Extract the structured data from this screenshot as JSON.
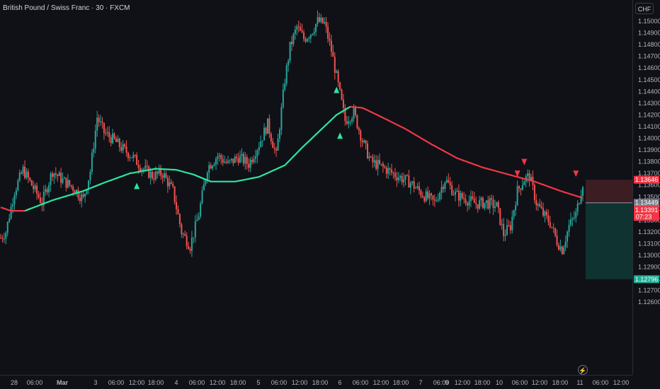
{
  "header": {
    "title": "British Pound / Swiss Franc · 30 · FXCM",
    "currency_button": "CHF"
  },
  "colors": {
    "background": "#0f1117",
    "up": "#26a69a",
    "down": "#ef5350",
    "ma_up": "#2ee59d",
    "ma_down": "#f23645",
    "grid": "#1c1f29",
    "stop_zone": "#3b1d22",
    "target_zone": "#0f3331"
  },
  "chart_data": {
    "type": "candlestick",
    "title": "British Pound / Swiss Franc · 30 · FXCM",
    "y_unit": "CHF",
    "ylim": [
      1.1255,
      1.1512
    ],
    "y_ticks": [
      "1.15000",
      "1.14900",
      "1.14800",
      "1.14700",
      "1.14600",
      "1.14500",
      "1.14400",
      "1.14300",
      "1.14200",
      "1.14100",
      "1.14000",
      "1.13900",
      "1.13800",
      "1.13700",
      "1.13600",
      "1.13500",
      "1.13400",
      "1.13300",
      "1.13200",
      "1.13100",
      "1.13000",
      "1.12900",
      "1.12800",
      "1.12700",
      "1.12600"
    ],
    "x_ticks": [
      "28",
      "06:00",
      "Mar",
      "3",
      "06:00",
      "12:00",
      "18:00",
      "4",
      "06:00",
      "12:00",
      "18:00",
      "5",
      "06:00",
      "12:00",
      "18:00",
      "6",
      "06:00",
      "12:00",
      "18:00",
      "7",
      "06:00",
      "12:00",
      "18:00",
      "9",
      "10",
      "06:00",
      "12:00",
      "18:00",
      "11",
      "06:00",
      "12:00"
    ],
    "price_path": [
      {
        "i": 0,
        "p": 1.1315
      },
      {
        "i": 3,
        "p": 1.132
      },
      {
        "i": 8,
        "p": 1.1355
      },
      {
        "i": 13,
        "p": 1.1373
      },
      {
        "i": 18,
        "p": 1.136
      },
      {
        "i": 24,
        "p": 1.1345
      },
      {
        "i": 30,
        "p": 1.1372
      },
      {
        "i": 36,
        "p": 1.1364
      },
      {
        "i": 42,
        "p": 1.1358
      },
      {
        "i": 48,
        "p": 1.1348
      },
      {
        "i": 52,
        "p": 1.1372
      },
      {
        "i": 56,
        "p": 1.1418
      },
      {
        "i": 60,
        "p": 1.1405
      },
      {
        "i": 66,
        "p": 1.1398
      },
      {
        "i": 70,
        "p": 1.1392
      },
      {
        "i": 76,
        "p": 1.1385
      },
      {
        "i": 82,
        "p": 1.1375
      },
      {
        "i": 88,
        "p": 1.1368
      },
      {
        "i": 94,
        "p": 1.137
      },
      {
        "i": 100,
        "p": 1.1355
      },
      {
        "i": 105,
        "p": 1.132
      },
      {
        "i": 110,
        "p": 1.1308
      },
      {
        "i": 115,
        "p": 1.1335
      },
      {
        "i": 120,
        "p": 1.1375
      },
      {
        "i": 126,
        "p": 1.1385
      },
      {
        "i": 132,
        "p": 1.1378
      },
      {
        "i": 138,
        "p": 1.1384
      },
      {
        "i": 144,
        "p": 1.1378
      },
      {
        "i": 150,
        "p": 1.1395
      },
      {
        "i": 155,
        "p": 1.1412
      },
      {
        "i": 160,
        "p": 1.1385
      },
      {
        "i": 165,
        "p": 1.145
      },
      {
        "i": 168,
        "p": 1.1478
      },
      {
        "i": 172,
        "p": 1.1495
      },
      {
        "i": 176,
        "p": 1.1485
      },
      {
        "i": 180,
        "p": 1.149
      },
      {
        "i": 184,
        "p": 1.15
      },
      {
        "i": 188,
        "p": 1.1498
      },
      {
        "i": 192,
        "p": 1.1475
      },
      {
        "i": 196,
        "p": 1.1445
      },
      {
        "i": 200,
        "p": 1.1415
      },
      {
        "i": 205,
        "p": 1.1422
      },
      {
        "i": 210,
        "p": 1.1398
      },
      {
        "i": 215,
        "p": 1.138
      },
      {
        "i": 222,
        "p": 1.1375
      },
      {
        "i": 230,
        "p": 1.1368
      },
      {
        "i": 238,
        "p": 1.1362
      },
      {
        "i": 245,
        "p": 1.1352
      },
      {
        "i": 252,
        "p": 1.1345
      },
      {
        "i": 258,
        "p": 1.1365
      },
      {
        "i": 264,
        "p": 1.1352
      },
      {
        "i": 270,
        "p": 1.1348
      },
      {
        "i": 276,
        "p": 1.1344
      },
      {
        "i": 282,
        "p": 1.1345
      },
      {
        "i": 288,
        "p": 1.1342
      },
      {
        "i": 292,
        "p": 1.1318
      },
      {
        "i": 296,
        "p": 1.1325
      },
      {
        "i": 300,
        "p": 1.1355
      },
      {
        "i": 304,
        "p": 1.1365
      },
      {
        "i": 307,
        "p": 1.1368
      },
      {
        "i": 311,
        "p": 1.1345
      },
      {
        "i": 315,
        "p": 1.1335
      },
      {
        "i": 319,
        "p": 1.1328
      },
      {
        "i": 323,
        "p": 1.1312
      },
      {
        "i": 326,
        "p": 1.1305
      },
      {
        "i": 330,
        "p": 1.1325
      },
      {
        "i": 334,
        "p": 1.1335
      },
      {
        "i": 338,
        "p": 1.1362
      }
    ],
    "moving_average": [
      {
        "i": 0,
        "v": 1.1341
      },
      {
        "i": 6,
        "v": 1.1338
      },
      {
        "i": 14,
        "v": 1.1338
      },
      {
        "i": 30,
        "v": 1.1347
      },
      {
        "i": 48,
        "v": 1.1355
      },
      {
        "i": 60,
        "v": 1.1362
      },
      {
        "i": 75,
        "v": 1.137
      },
      {
        "i": 90,
        "v": 1.1374
      },
      {
        "i": 102,
        "v": 1.1373
      },
      {
        "i": 112,
        "v": 1.1369
      },
      {
        "i": 122,
        "v": 1.1363
      },
      {
        "i": 136,
        "v": 1.1363
      },
      {
        "i": 150,
        "v": 1.1367
      },
      {
        "i": 165,
        "v": 1.1377
      },
      {
        "i": 175,
        "v": 1.1392
      },
      {
        "i": 185,
        "v": 1.1406
      },
      {
        "i": 195,
        "v": 1.142
      },
      {
        "i": 203,
        "v": 1.1427
      },
      {
        "i": 210,
        "v": 1.1426
      },
      {
        "i": 220,
        "v": 1.1419
      },
      {
        "i": 235,
        "v": 1.1408
      },
      {
        "i": 250,
        "v": 1.1395
      },
      {
        "i": 265,
        "v": 1.1383
      },
      {
        "i": 280,
        "v": 1.1375
      },
      {
        "i": 295,
        "v": 1.1369
      },
      {
        "i": 310,
        "v": 1.1363
      },
      {
        "i": 325,
        "v": 1.1355
      },
      {
        "i": 338,
        "v": 1.1349
      }
    ],
    "ma_turn_index": 203,
    "signals": [
      {
        "type": "buy",
        "i": 79,
        "p": 1.1359
      },
      {
        "type": "buy",
        "i": 195,
        "p": 1.1441
      },
      {
        "type": "buy",
        "i": 197,
        "p": 1.1402
      },
      {
        "type": "sell",
        "i": 304,
        "p": 1.138
      },
      {
        "type": "sell",
        "i": 300,
        "p": 1.137
      },
      {
        "type": "sell",
        "i": 334,
        "p": 1.137
      }
    ],
    "trade_box": {
      "entry": 1.13449,
      "stop": 1.13646,
      "target": 1.12796,
      "start_i": 338
    },
    "price_labels": [
      {
        "price": 1.13646,
        "text": "1.13646",
        "kind": "stop"
      },
      {
        "price": 1.13449,
        "text": "1.13449",
        "kind": "entry"
      },
      {
        "price": 1.13391,
        "text": "1.13391",
        "kind": "last",
        "countdown": "07:23"
      },
      {
        "price": 1.12796,
        "text": "1.12796",
        "kind": "target"
      }
    ],
    "grid": false,
    "legend": "none"
  }
}
